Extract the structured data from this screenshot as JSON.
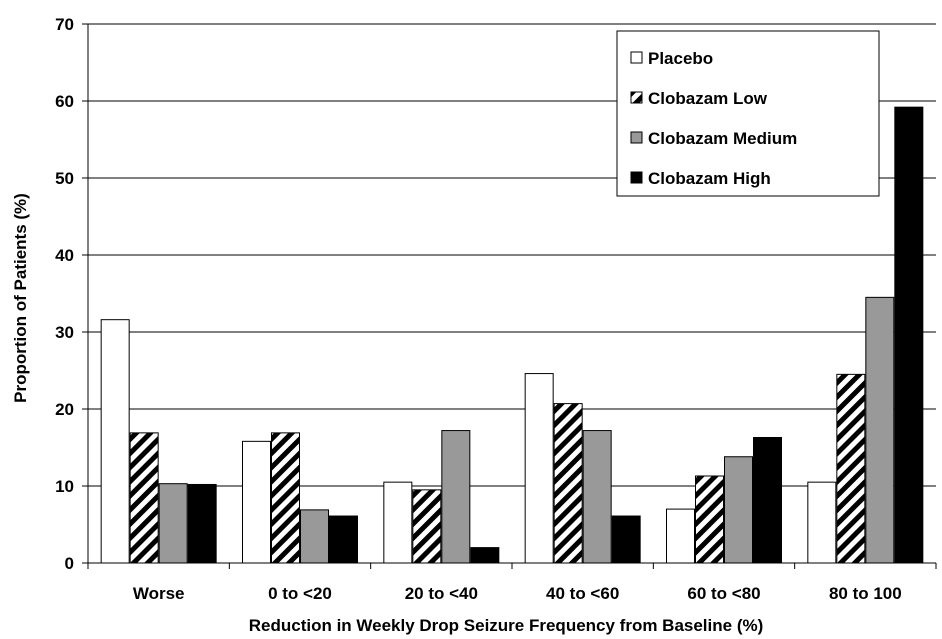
{
  "chart_data": {
    "type": "bar",
    "title": "",
    "xlabel": "Reduction in Weekly Drop Seizure Frequency from Baseline (%)",
    "ylabel": "Proportion of Patients (%)",
    "ylim": [
      0,
      70
    ],
    "yticks": [
      "0",
      "10",
      "20",
      "30",
      "40",
      "50",
      "60",
      "70"
    ],
    "grid": "horizontal",
    "legend_position": "top-right",
    "categories": [
      "Worse",
      "0 to <20",
      "20 to <40",
      "40 to <60",
      "60 to <80",
      "80 to 100"
    ],
    "series": [
      {
        "name": "Placebo",
        "fill": "#ffffff",
        "pattern": "solid",
        "values": [
          31.6,
          15.8,
          10.5,
          24.6,
          7.0,
          10.5
        ]
      },
      {
        "name": "Clobazam Low",
        "fill": "#000000",
        "pattern": "diagonal-stripes",
        "values": [
          16.9,
          16.9,
          9.5,
          20.7,
          11.3,
          24.5
        ]
      },
      {
        "name": "Clobazam Medium",
        "fill": "#999999",
        "pattern": "solid",
        "values": [
          10.3,
          6.9,
          17.2,
          17.2,
          13.8,
          34.5
        ]
      },
      {
        "name": "Clobazam High",
        "fill": "#000000",
        "pattern": "solid",
        "values": [
          10.2,
          6.1,
          2.0,
          6.1,
          16.3,
          59.2
        ]
      }
    ]
  }
}
